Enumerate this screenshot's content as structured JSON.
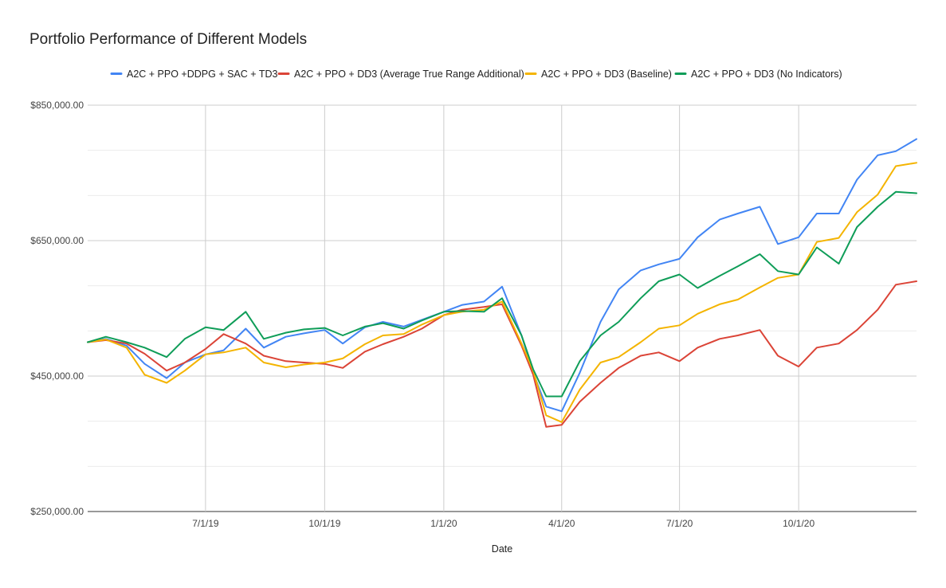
{
  "chart_data": {
    "type": "line",
    "title": "Portfolio Performance of Different Models",
    "xlabel": "Date",
    "ylabel": "",
    "x_range": [
      "2019-04-01",
      "2020-12-31"
    ],
    "x_ticks": [
      {
        "date": "2019-07-01",
        "label": "7/1/19"
      },
      {
        "date": "2019-10-01",
        "label": "10/1/19"
      },
      {
        "date": "2020-01-01",
        "label": "1/1/20"
      },
      {
        "date": "2020-04-01",
        "label": "4/1/20"
      },
      {
        "date": "2020-07-01",
        "label": "7/1/20"
      },
      {
        "date": "2020-10-01",
        "label": "10/1/20"
      }
    ],
    "ylim": [
      250000,
      850000
    ],
    "y_ticks": [
      {
        "value": 250000,
        "label": "$250,000.00"
      },
      {
        "value": 450000,
        "label": "$450,000.00"
      },
      {
        "value": 650000,
        "label": "$650,000.00"
      },
      {
        "value": 850000,
        "label": "$850,000.00"
      }
    ],
    "minor_gridlines": [
      316667,
      383333,
      516667,
      583333,
      716667,
      783333
    ],
    "grid": true,
    "legend_position": "top",
    "x": [
      "2019-04-01",
      "2019-04-15",
      "2019-05-01",
      "2019-05-15",
      "2019-06-01",
      "2019-06-15",
      "2019-07-01",
      "2019-07-15",
      "2019-08-01",
      "2019-08-15",
      "2019-09-01",
      "2019-09-15",
      "2019-10-01",
      "2019-10-15",
      "2019-11-01",
      "2019-11-15",
      "2019-12-01",
      "2019-12-15",
      "2020-01-01",
      "2020-01-15",
      "2020-02-01",
      "2020-02-15",
      "2020-03-01",
      "2020-03-10",
      "2020-03-20",
      "2020-04-01",
      "2020-04-15",
      "2020-05-01",
      "2020-05-15",
      "2020-06-01",
      "2020-06-15",
      "2020-07-01",
      "2020-07-15",
      "2020-08-01",
      "2020-08-15",
      "2020-09-01",
      "2020-09-15",
      "2020-10-01",
      "2020-10-15",
      "2020-11-01",
      "2020-11-15",
      "2020-12-01",
      "2020-12-15",
      "2020-12-31"
    ],
    "series": [
      {
        "name": "A2C + PPO +DDPG + SAC + TD3",
        "color": "#4285F4",
        "values": [
          500000,
          505000,
          495000,
          468000,
          447000,
          470000,
          482000,
          488000,
          520000,
          492000,
          508000,
          513000,
          518000,
          498000,
          522000,
          530000,
          523000,
          533000,
          545000,
          555000,
          560000,
          582000,
          510000,
          455000,
          405000,
          398000,
          455000,
          530000,
          578000,
          606000,
          615000,
          623000,
          655000,
          681000,
          690000,
          700000,
          645000,
          655000,
          690000,
          690000,
          740000,
          776000,
          782000,
          800000
        ]
      },
      {
        "name": "A2C + PPO + DD3 (Average True Range Additional)",
        "color": "#DB4437",
        "values": [
          500000,
          503000,
          498000,
          483000,
          458000,
          470000,
          490000,
          512000,
          498000,
          480000,
          472000,
          470000,
          468000,
          462000,
          486000,
          497000,
          508000,
          520000,
          540000,
          548000,
          552000,
          556000,
          495000,
          452000,
          375000,
          378000,
          412000,
          440000,
          462000,
          480000,
          485000,
          472000,
          492000,
          505000,
          510000,
          518000,
          480000,
          464000,
          492000,
          498000,
          518000,
          548000,
          585000,
          590000
        ]
      },
      {
        "name": "A2C + PPO + DD3 (Baseline)",
        "color": "#F4B400",
        "values": [
          500000,
          504000,
          492000,
          452000,
          440000,
          458000,
          482000,
          485000,
          492000,
          470000,
          463000,
          467000,
          470000,
          476000,
          497000,
          510000,
          512000,
          526000,
          540000,
          545000,
          548000,
          560000,
          498000,
          458000,
          392000,
          382000,
          430000,
          470000,
          478000,
          500000,
          520000,
          525000,
          542000,
          556000,
          563000,
          581000,
          595000,
          600000,
          648000,
          654000,
          692000,
          718000,
          760000,
          765000
        ]
      },
      {
        "name": "A2C + PPO + DD3 (No Indicators)",
        "color": "#0F9D58",
        "values": [
          500000,
          508000,
          500000,
          492000,
          478000,
          505000,
          522000,
          518000,
          545000,
          505000,
          514000,
          519000,
          521000,
          510000,
          523000,
          528000,
          520000,
          532000,
          545000,
          546000,
          545000,
          565000,
          510000,
          460000,
          420000,
          420000,
          472000,
          510000,
          530000,
          565000,
          590000,
          600000,
          580000,
          598000,
          612000,
          630000,
          605000,
          600000,
          640000,
          616000,
          670000,
          700000,
          722000,
          720000
        ]
      }
    ]
  }
}
